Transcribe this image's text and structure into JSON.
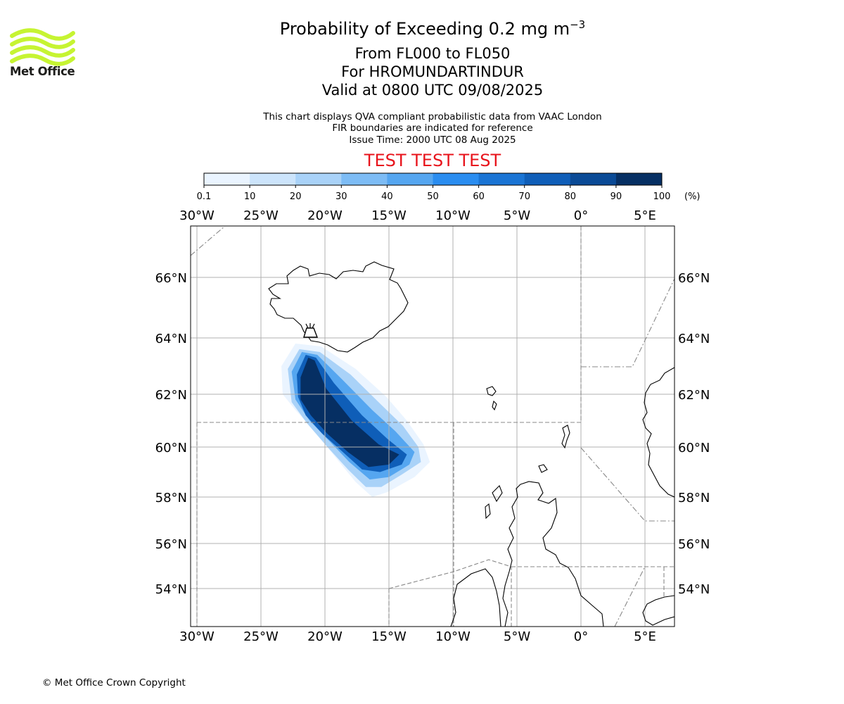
{
  "logo": {
    "text": "Met Office",
    "color": "#c6f432"
  },
  "title": {
    "main": "Probability of Exceeding 0.2 mg m",
    "main_sup": "−3",
    "line2": "From FL000 to FL050",
    "line3": "For HROMUNDARTINDUR",
    "line4": "Valid at 0800 UTC 09/08/2025"
  },
  "subtitle": [
    "This chart displays QVA compliant probabilistic data from VAAC London",
    "FIR boundaries are indicated for reference",
    "Issue Time: 2000 UTC 08 Aug 2025"
  ],
  "test_banner": "TEST TEST TEST",
  "colorbar": {
    "ticks": [
      "0.1",
      "10",
      "20",
      "30",
      "40",
      "50",
      "60",
      "70",
      "80",
      "90",
      "100"
    ],
    "unit": "(%)",
    "colors": [
      "#eaf4ff",
      "#cce4fb",
      "#a9d2f8",
      "#7dbcf5",
      "#55a6f0",
      "#2a8df0",
      "#1a74d4",
      "#0f5eb8",
      "#0a4a96",
      "#062f63"
    ]
  },
  "map": {
    "lon_ticks": [
      "30°W",
      "25°W",
      "20°W",
      "15°W",
      "10°W",
      "5°W",
      "0°",
      "5°E"
    ],
    "lat_ticks": [
      "66°N",
      "64°N",
      "62°N",
      "60°N",
      "58°N",
      "56°N",
      "54°N"
    ],
    "volcano": "HROMUNDARTINDUR",
    "volcano_position": {
      "lon": -21.2,
      "lat": 64.08
    }
  },
  "copyright": "© Met Office Crown Copyright"
}
